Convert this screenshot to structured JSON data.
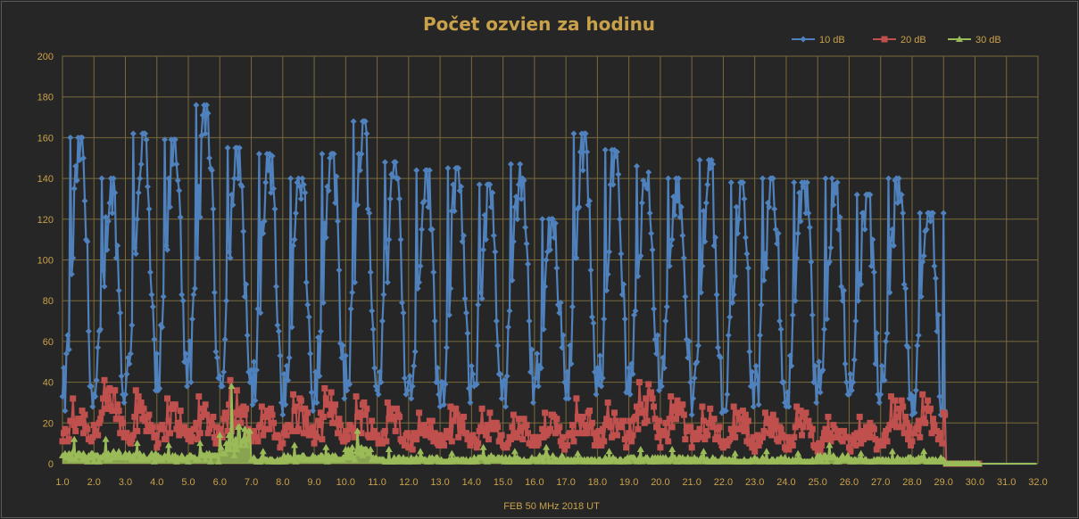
{
  "chart_data": {
    "type": "line",
    "title": "Počet ozvien za hodinu",
    "xlabel": "FEB 50 MHz  2018  UT",
    "ylabel": "",
    "xlim": [
      1.0,
      32.0
    ],
    "ylim": [
      0,
      200
    ],
    "x_ticks": [
      "1.0",
      "2.0",
      "3.0",
      "4.0",
      "5.0",
      "6.0",
      "7.0",
      "8.0",
      "9.0",
      "10.0",
      "11.0",
      "12.0",
      "13.0",
      "14.0",
      "15.0",
      "16.0",
      "17.0",
      "18.0",
      "19.0",
      "20.0",
      "21.0",
      "22.0",
      "23.0",
      "24.0",
      "25.0",
      "26.0",
      "27.0",
      "28.0",
      "29.0",
      "30.0",
      "31.0",
      "32.0"
    ],
    "y_ticks": [
      "0",
      "20",
      "40",
      "60",
      "80",
      "100",
      "120",
      "140",
      "160",
      "180",
      "200"
    ],
    "grid": true,
    "legend_position": "top-right",
    "x_step": 0.0416667,
    "series": [
      {
        "name": "10 dB",
        "color": "#4f81bd",
        "marker": "diamond",
        "daily_peaks": [
          160,
          140,
          162,
          159,
          176,
          155,
          152,
          140,
          152,
          168,
          148,
          144,
          145,
          137,
          147,
          120,
          162,
          154,
          146,
          140,
          149,
          138,
          140,
          138,
          140,
          132,
          140,
          123
        ],
        "daily_troughs": [
          28,
          30,
          36,
          38,
          42,
          40,
          30,
          26,
          32,
          38,
          36,
          34,
          30,
          32,
          30,
          40,
          34,
          36,
          36,
          40,
          25,
          28,
          30,
          30,
          34,
          30,
          34,
          26
        ],
        "values": []
      },
      {
        "name": "20 dB",
        "color": "#c0504d",
        "marker": "square",
        "daily_peaks": [
          32,
          41,
          36,
          32,
          33,
          41,
          28,
          34,
          37,
          33,
          30,
          25,
          28,
          27,
          24,
          25,
          32,
          30,
          40,
          33,
          28,
          28,
          25,
          28,
          23,
          23,
          33,
          34
        ],
        "values": []
      },
      {
        "name": "30 dB",
        "color": "#9bbb59",
        "marker": "triangle",
        "daily_peaks": [
          12,
          12,
          10,
          9,
          10,
          38,
          6,
          9,
          8,
          16,
          7,
          6,
          5,
          8,
          6,
          8,
          5,
          6,
          7,
          7,
          6,
          5,
          6,
          5,
          9,
          5,
          6,
          6
        ],
        "values": []
      }
    ]
  }
}
